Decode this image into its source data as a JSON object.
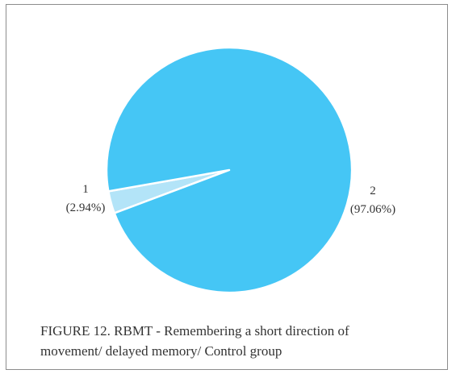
{
  "chart_data": {
    "type": "pie",
    "slices": [
      {
        "label": "1",
        "percent_label": "(2.94%)",
        "value": 2.94,
        "color": "#b3e4f8"
      },
      {
        "label": "2",
        "percent_label": "(97.06%)",
        "value": 97.06,
        "color": "#45c6f5"
      }
    ],
    "legend": "none",
    "edge_color": "#ffffff"
  },
  "caption": {
    "line1": "FIGURE 12.  RBMT - Remembering a short direction of",
    "line2": "movement/ delayed memory/ Control group"
  }
}
